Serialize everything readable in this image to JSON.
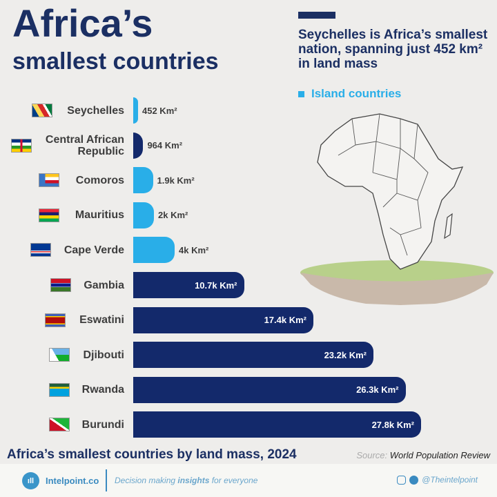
{
  "title_line1": "Africa’s",
  "title_line2": "smallest countries",
  "headline": "Seychelles is Africa’s smallest nation, spanning just 452 km² in land mass",
  "legend_label": "Island countries",
  "colors": {
    "island": "#29aee8",
    "mainland": "#13296b"
  },
  "chart_data": {
    "type": "bar",
    "orientation": "horizontal",
    "title": "Africa’s smallest countries by land mass, 2024",
    "unit": "Km²",
    "categories": [
      "Seychelles",
      "Central African Republic",
      "Comoros",
      "Mauritius",
      "Cape Verde",
      "Gambia",
      "Eswatini",
      "Djibouti",
      "Rwanda",
      "Burundi"
    ],
    "values": [
      452,
      964,
      1900,
      2000,
      4000,
      10700,
      17400,
      23200,
      26300,
      27800
    ],
    "labels": [
      "452 Km²",
      "964 Km²",
      "1.9k Km²",
      "2k Km²",
      "4k Km²",
      "10.7k Km²",
      "17.4k Km²",
      "23.2k Km²",
      "26.3k Km²",
      "27.8k Km²"
    ],
    "island": [
      true,
      false,
      true,
      true,
      true,
      false,
      false,
      false,
      false,
      false
    ]
  },
  "subtitle": "Africa’s smallest countries by land mass, 2024",
  "source_label": "Source:",
  "source_value": "World Population Review",
  "footer": {
    "brand": "Intelpoint.co",
    "tagline_pre": "Decision making ",
    "tagline_bold": "insights",
    "tagline_post": " for everyone",
    "social": "@Theintelpoint"
  }
}
